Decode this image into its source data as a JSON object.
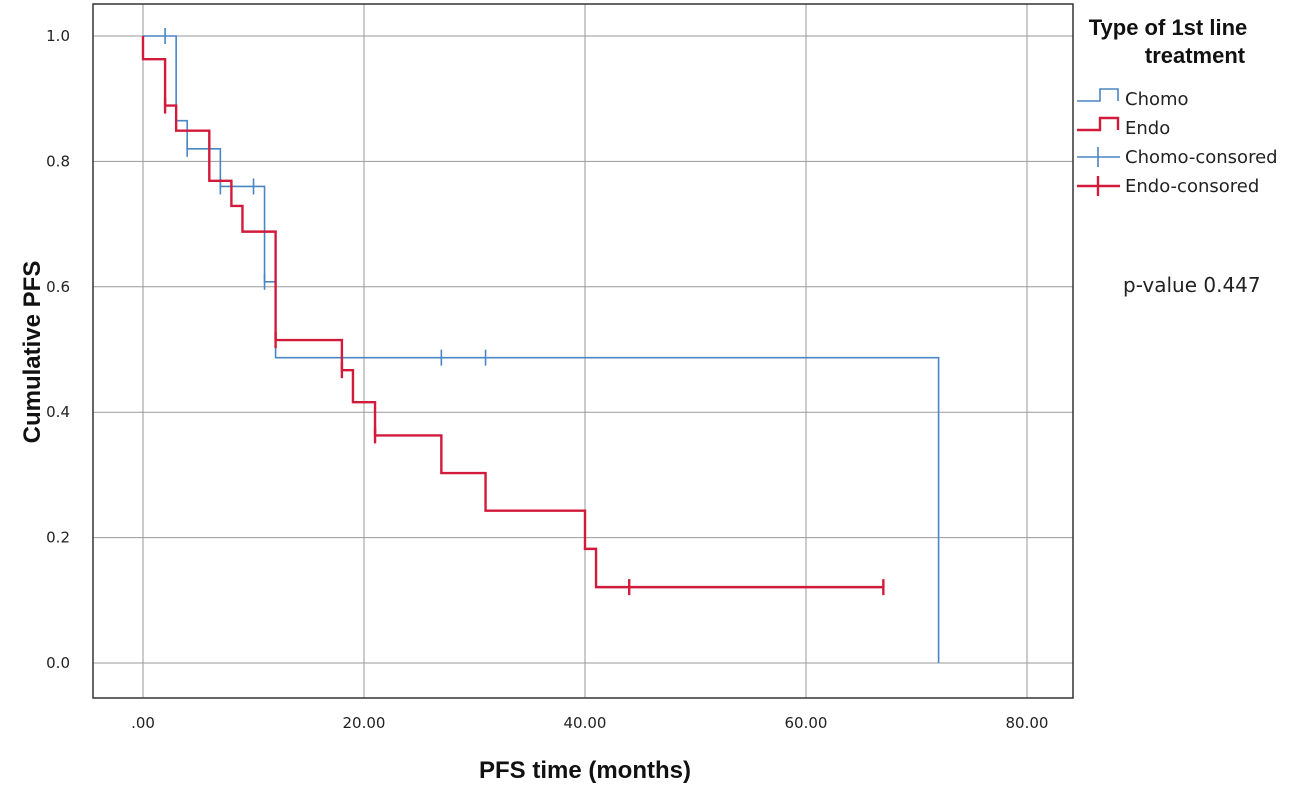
{
  "chart_data": {
    "type": "line",
    "subtype": "kaplan-meier step",
    "xlabel": "PFS time (months)",
    "ylabel": "Cumulative PFS",
    "xlim": [
      -2,
      84
    ],
    "ylim": [
      -0.05,
      1.05
    ],
    "x_ticks": [
      0,
      20,
      40,
      60,
      80
    ],
    "x_tick_labels": [
      ".00",
      "20.00",
      "40.00",
      "60.00",
      "80.00"
    ],
    "y_ticks": [
      0,
      0.2,
      0.4,
      0.6,
      0.8,
      1.0
    ],
    "y_tick_labels": [
      "0.0",
      "0.2",
      "0.4",
      "0.6",
      "0.8",
      "1.0"
    ],
    "grid": true,
    "legend_title_lines": [
      "Type of 1st line",
      "treatment"
    ],
    "legend_position": "top-right",
    "legend": [
      {
        "label": "Chomo",
        "kind": "line",
        "series": "Chomo"
      },
      {
        "label": "Endo",
        "kind": "line",
        "series": "Endo"
      },
      {
        "label": "Chomo-consored",
        "kind": "censor",
        "series": "Chomo"
      },
      {
        "label": "Endo-consored",
        "kind": "censor",
        "series": "Endo"
      }
    ],
    "annotation": "p-value 0.447",
    "series": [
      {
        "name": "Chomo",
        "color": "#4a86c4",
        "line_width": 1.6,
        "steps": [
          [
            0,
            1.0
          ],
          [
            3,
            0.865
          ],
          [
            4,
            0.82
          ],
          [
            7,
            0.76
          ],
          [
            11,
            0.608
          ],
          [
            12,
            0.487
          ],
          [
            72,
            0.487
          ],
          [
            72,
            0.0
          ]
        ],
        "censored": [
          [
            2,
            1.0
          ],
          [
            4,
            0.82
          ],
          [
            7,
            0.76
          ],
          [
            10,
            0.76
          ],
          [
            11,
            0.608
          ],
          [
            27,
            0.487
          ],
          [
            31,
            0.487
          ]
        ]
      },
      {
        "name": "Endo",
        "color": "#d21a3a",
        "line_width": 2.4,
        "steps": [
          [
            0,
            1.0
          ],
          [
            0,
            0.963
          ],
          [
            2,
            0.889
          ],
          [
            3,
            0.849
          ],
          [
            6,
            0.769
          ],
          [
            8,
            0.729
          ],
          [
            9,
            0.688
          ],
          [
            12,
            0.515
          ],
          [
            18,
            0.467
          ],
          [
            19,
            0.416
          ],
          [
            21,
            0.363
          ],
          [
            27,
            0.303
          ],
          [
            31,
            0.243
          ],
          [
            40,
            0.182
          ],
          [
            41,
            0.121
          ],
          [
            67,
            0.121
          ]
        ],
        "censored": [
          [
            2,
            0.889
          ],
          [
            12,
            0.515
          ],
          [
            18,
            0.467
          ],
          [
            21,
            0.363
          ],
          [
            44,
            0.121
          ],
          [
            67,
            0.121
          ]
        ]
      }
    ]
  }
}
